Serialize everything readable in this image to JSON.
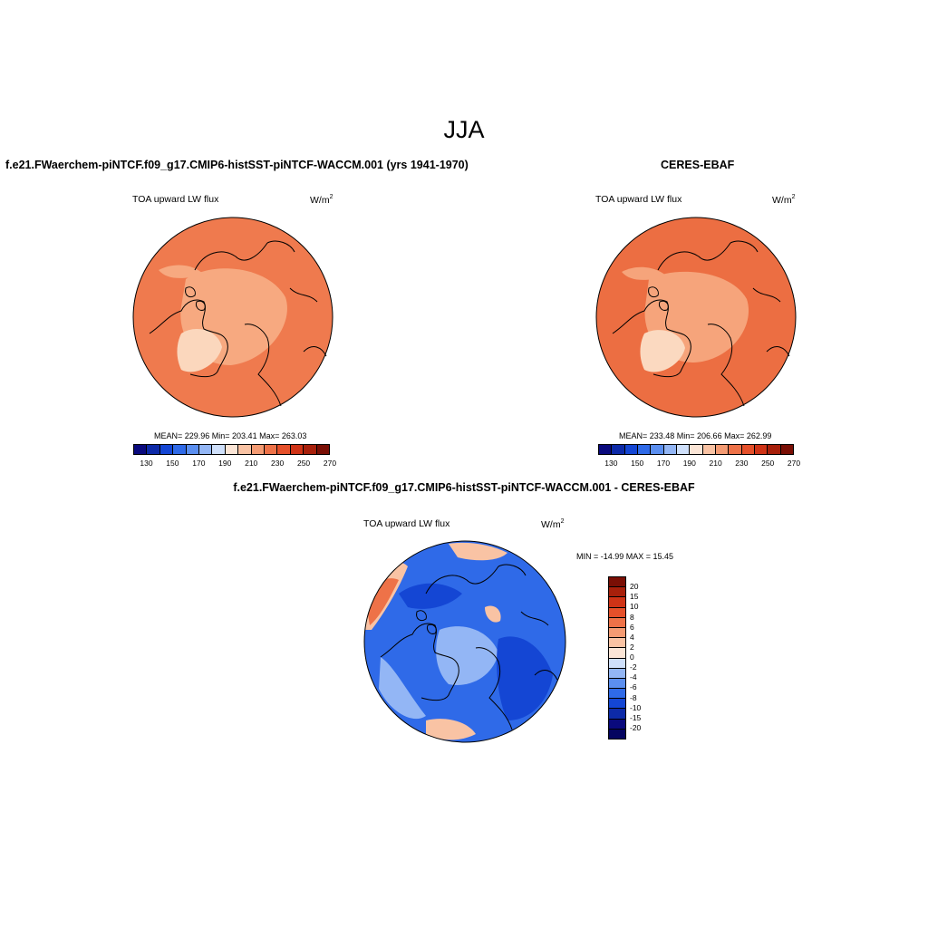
{
  "figure": {
    "title": "JJA",
    "bottom_title": "f.e21.FWaerchem-piNTCF.f09_g17.CMIP6-histSST-piNTCF-WACCM.001 - CERES-EBAF"
  },
  "panels": {
    "model": {
      "title": "f.e21.FWaerchem-piNTCF.f09_g17.CMIP6-histSST-piNTCF-WACCM.001 (yrs 1941-1970)",
      "variable": "TOA upward LW flux",
      "units": "W/m",
      "units_exp": "2",
      "stats": "MEAN= 229.96  Min= 203.41  Max= 263.03"
    },
    "obs": {
      "title": "CERES-EBAF",
      "variable": "TOA upward LW flux",
      "units": "W/m",
      "units_exp": "2",
      "stats": "MEAN= 233.48  Min= 206.66  Max= 262.99"
    },
    "diff": {
      "variable": "TOA upward LW flux",
      "units": "W/m",
      "units_exp": "2",
      "stats": "MIN = -14.99 MAX =  15.45"
    }
  },
  "colorbars": {
    "absolute": {
      "labels": [
        "130",
        "150",
        "170",
        "190",
        "210",
        "230",
        "250",
        "270"
      ],
      "colors": [
        "#0a0a7d",
        "#0d2aa8",
        "#1446d4",
        "#2f6ae8",
        "#5b8ff0",
        "#93b6f5",
        "#cfe0fb",
        "#fbe5d6",
        "#f9c3a4",
        "#f49b73",
        "#ee7248",
        "#e5502a",
        "#cf3316",
        "#a8200b",
        "#7a0f05"
      ]
    },
    "difference": {
      "labels": [
        "20",
        "15",
        "10",
        "8",
        "6",
        "4",
        "2",
        "0",
        "-2",
        "-4",
        "-6",
        "-8",
        "-10",
        "-15",
        "-20"
      ],
      "colors": [
        "#7a0f05",
        "#a8200b",
        "#cf3316",
        "#e5502a",
        "#ee7248",
        "#f49b73",
        "#f9c3a4",
        "#fbe5d6",
        "#cfe0fb",
        "#93b6f5",
        "#5b8ff0",
        "#2f6ae8",
        "#1446d4",
        "#0d2aa8",
        "#0a0a7d",
        "#050560"
      ]
    }
  },
  "map_colors": {
    "model_field": "#ef7a4e",
    "model_cold": "#f7a980",
    "model_ice": "#fbd7bd",
    "obs_field": "#ec6e42",
    "obs_cold": "#f6a47b",
    "obs_ice": "#fbd9c0",
    "diff_neg": "#2f6ae8",
    "diff_neg_light": "#93b6f5",
    "diff_neg_strong": "#1446d4",
    "diff_pos": "#f9c3a4",
    "diff_pos_strong": "#ee7248",
    "coastline": "#000000"
  }
}
